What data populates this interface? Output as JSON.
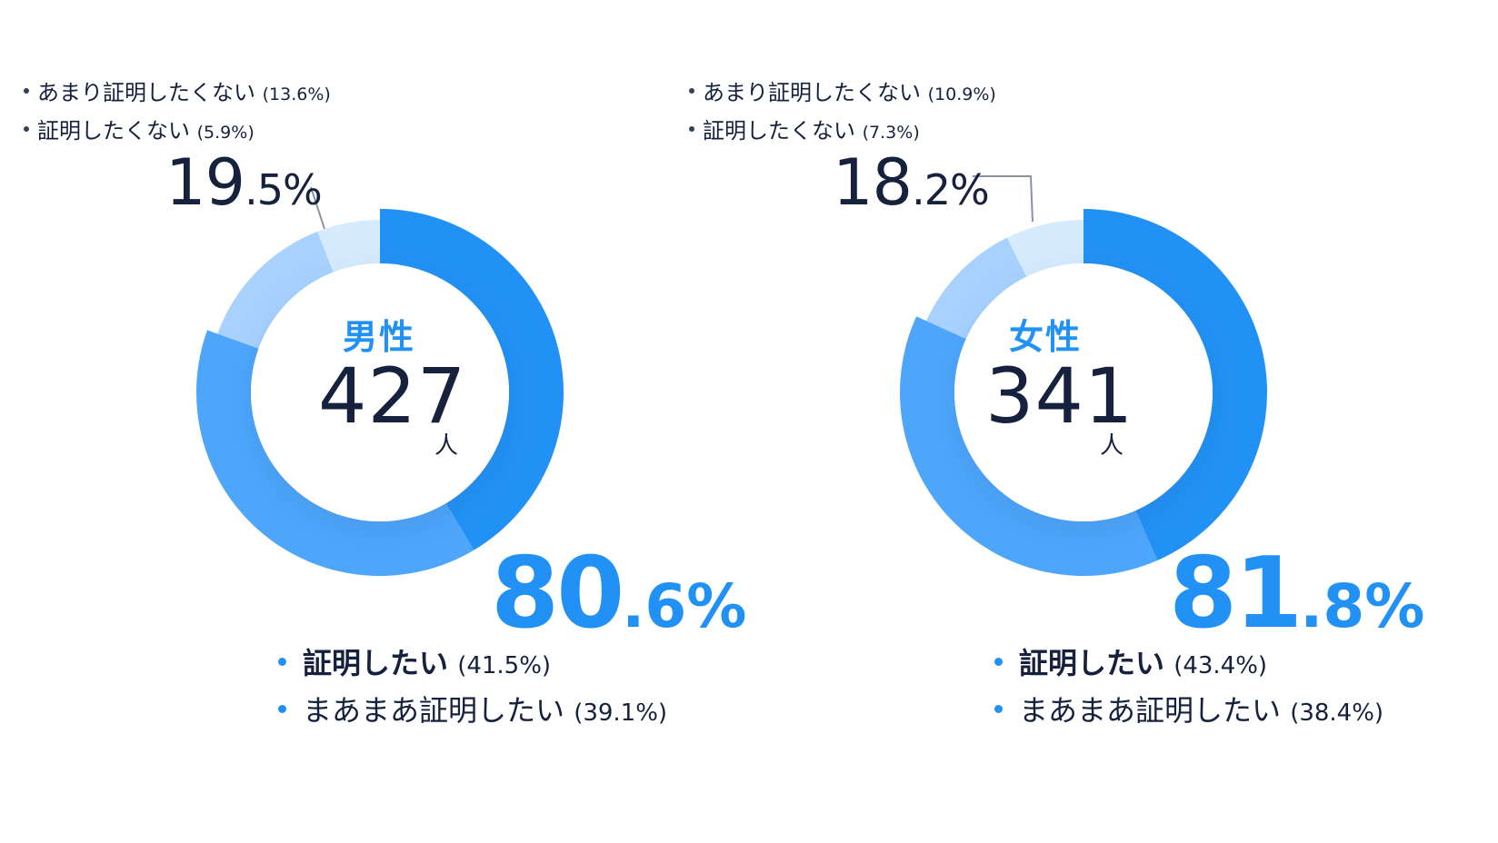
{
  "chart_data": [
    {
      "type": "pie",
      "title": "男性",
      "center_value": "427",
      "center_unit": "人",
      "positive_total": {
        "int": "80",
        "dec": ".6",
        "unit": "%"
      },
      "negative_total": {
        "int": "19",
        "dec": ".5",
        "unit": "%"
      },
      "slices": [
        {
          "label": "証明したい",
          "value": 41.5,
          "display": "(41.5%)",
          "color": "#2291f5"
        },
        {
          "label": "まあまあ証明したい",
          "value": 39.1,
          "display": "(39.1%)",
          "color": "#4ea6fb"
        },
        {
          "label": "あまり証明したくない",
          "value": 13.6,
          "display": "(13.6%)",
          "color": "#a8d2fd"
        },
        {
          "label": "証明したくない",
          "value": 5.9,
          "display": "(5.9%)",
          "color": "#d7ebfe"
        }
      ]
    },
    {
      "type": "pie",
      "title": "女性",
      "center_value": "341",
      "center_unit": "人",
      "positive_total": {
        "int": "81",
        "dec": ".8",
        "unit": "%"
      },
      "negative_total": {
        "int": "18",
        "dec": ".2",
        "unit": "%"
      },
      "slices": [
        {
          "label": "証明したい",
          "value": 43.4,
          "display": "(43.4%)",
          "color": "#2291f5"
        },
        {
          "label": "まあまあ証明したい",
          "value": 38.4,
          "display": "(38.4%)",
          "color": "#4ea6fb"
        },
        {
          "label": "あまり証明したくない",
          "value": 10.9,
          "display": "(10.9%)",
          "color": "#a8d2fd"
        },
        {
          "label": "証明したくない",
          "value": 7.3,
          "display": "(7.3%)",
          "color": "#d7ebfe"
        }
      ]
    }
  ]
}
